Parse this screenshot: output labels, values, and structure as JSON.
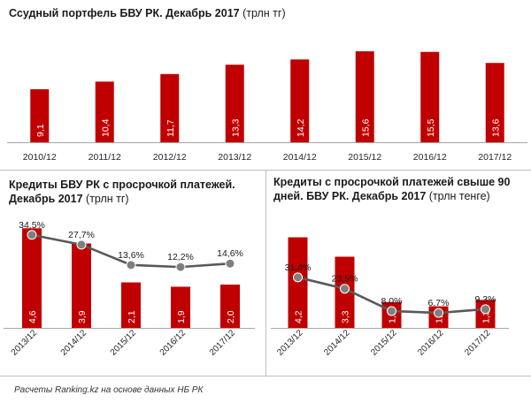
{
  "colors": {
    "bar": "#c00000",
    "line": "#595959",
    "marker": "#7f7f7f",
    "axis": "#a6a6a6",
    "label_inside": "#ffffff",
    "label_outside": "#1a1a1a"
  },
  "chart_data": [
    {
      "type": "bar",
      "title": "Ссудный портфель БВУ РК. Декабрь 2017",
      "unit": "(трлн тг)",
      "categories": [
        "2010/12",
        "2011/12",
        "2012/12",
        "2013/12",
        "2014/12",
        "2015/12",
        "2016/12",
        "2017/12"
      ],
      "values": [
        9.1,
        10.4,
        11.7,
        13.3,
        14.2,
        15.6,
        15.5,
        13.6
      ],
      "value_labels": [
        "9,1",
        "10,4",
        "11,7",
        "13,3",
        "14,2",
        "15,6",
        "15,5",
        "13,6"
      ],
      "grid": false,
      "legend": "none"
    },
    {
      "type": "bar",
      "title": "Кредиты БВУ РК с просрочкой платежей. Декабрь 2017",
      "unit": "(трлн тг)",
      "categories": [
        "2013/12",
        "2014/12",
        "2015/12",
        "2016/12",
        "2017/12"
      ],
      "values": [
        4.6,
        3.9,
        2.1,
        1.9,
        2.0
      ],
      "value_labels": [
        "4,6",
        "3,9",
        "2,1",
        "1,9",
        "2,0"
      ],
      "share_values": [
        34.5,
        27.7,
        13.6,
        12.2,
        14.6
      ],
      "share_labels": [
        "34,5%",
        "27,7%",
        "13,6%",
        "12,2%",
        "14,6%"
      ],
      "grid": false,
      "legend": "none"
    },
    {
      "type": "bar",
      "title": "Кредиты с просрочкой платежей свыше 90 дней. БВУ РК. Декабрь 2017",
      "unit": "(трлн тенге)",
      "categories": [
        "2013/12",
        "2014/12",
        "2015/12",
        "2016/12",
        "2017/12"
      ],
      "values": [
        4.2,
        3.3,
        1.2,
        1.0,
        1.3
      ],
      "value_labels": [
        "4,2",
        "3,3",
        "1,2",
        "1,0",
        "1,3"
      ],
      "share_values": [
        31.4,
        23.5,
        8.0,
        6.7,
        9.3
      ],
      "share_labels": [
        "31,4%",
        "23,5%",
        "8,0%",
        "6,7%",
        "9,3%"
      ],
      "grid": false,
      "legend": "none"
    }
  ],
  "footnote": "Расчеты Ranking.kz на основе данных НБ РК"
}
